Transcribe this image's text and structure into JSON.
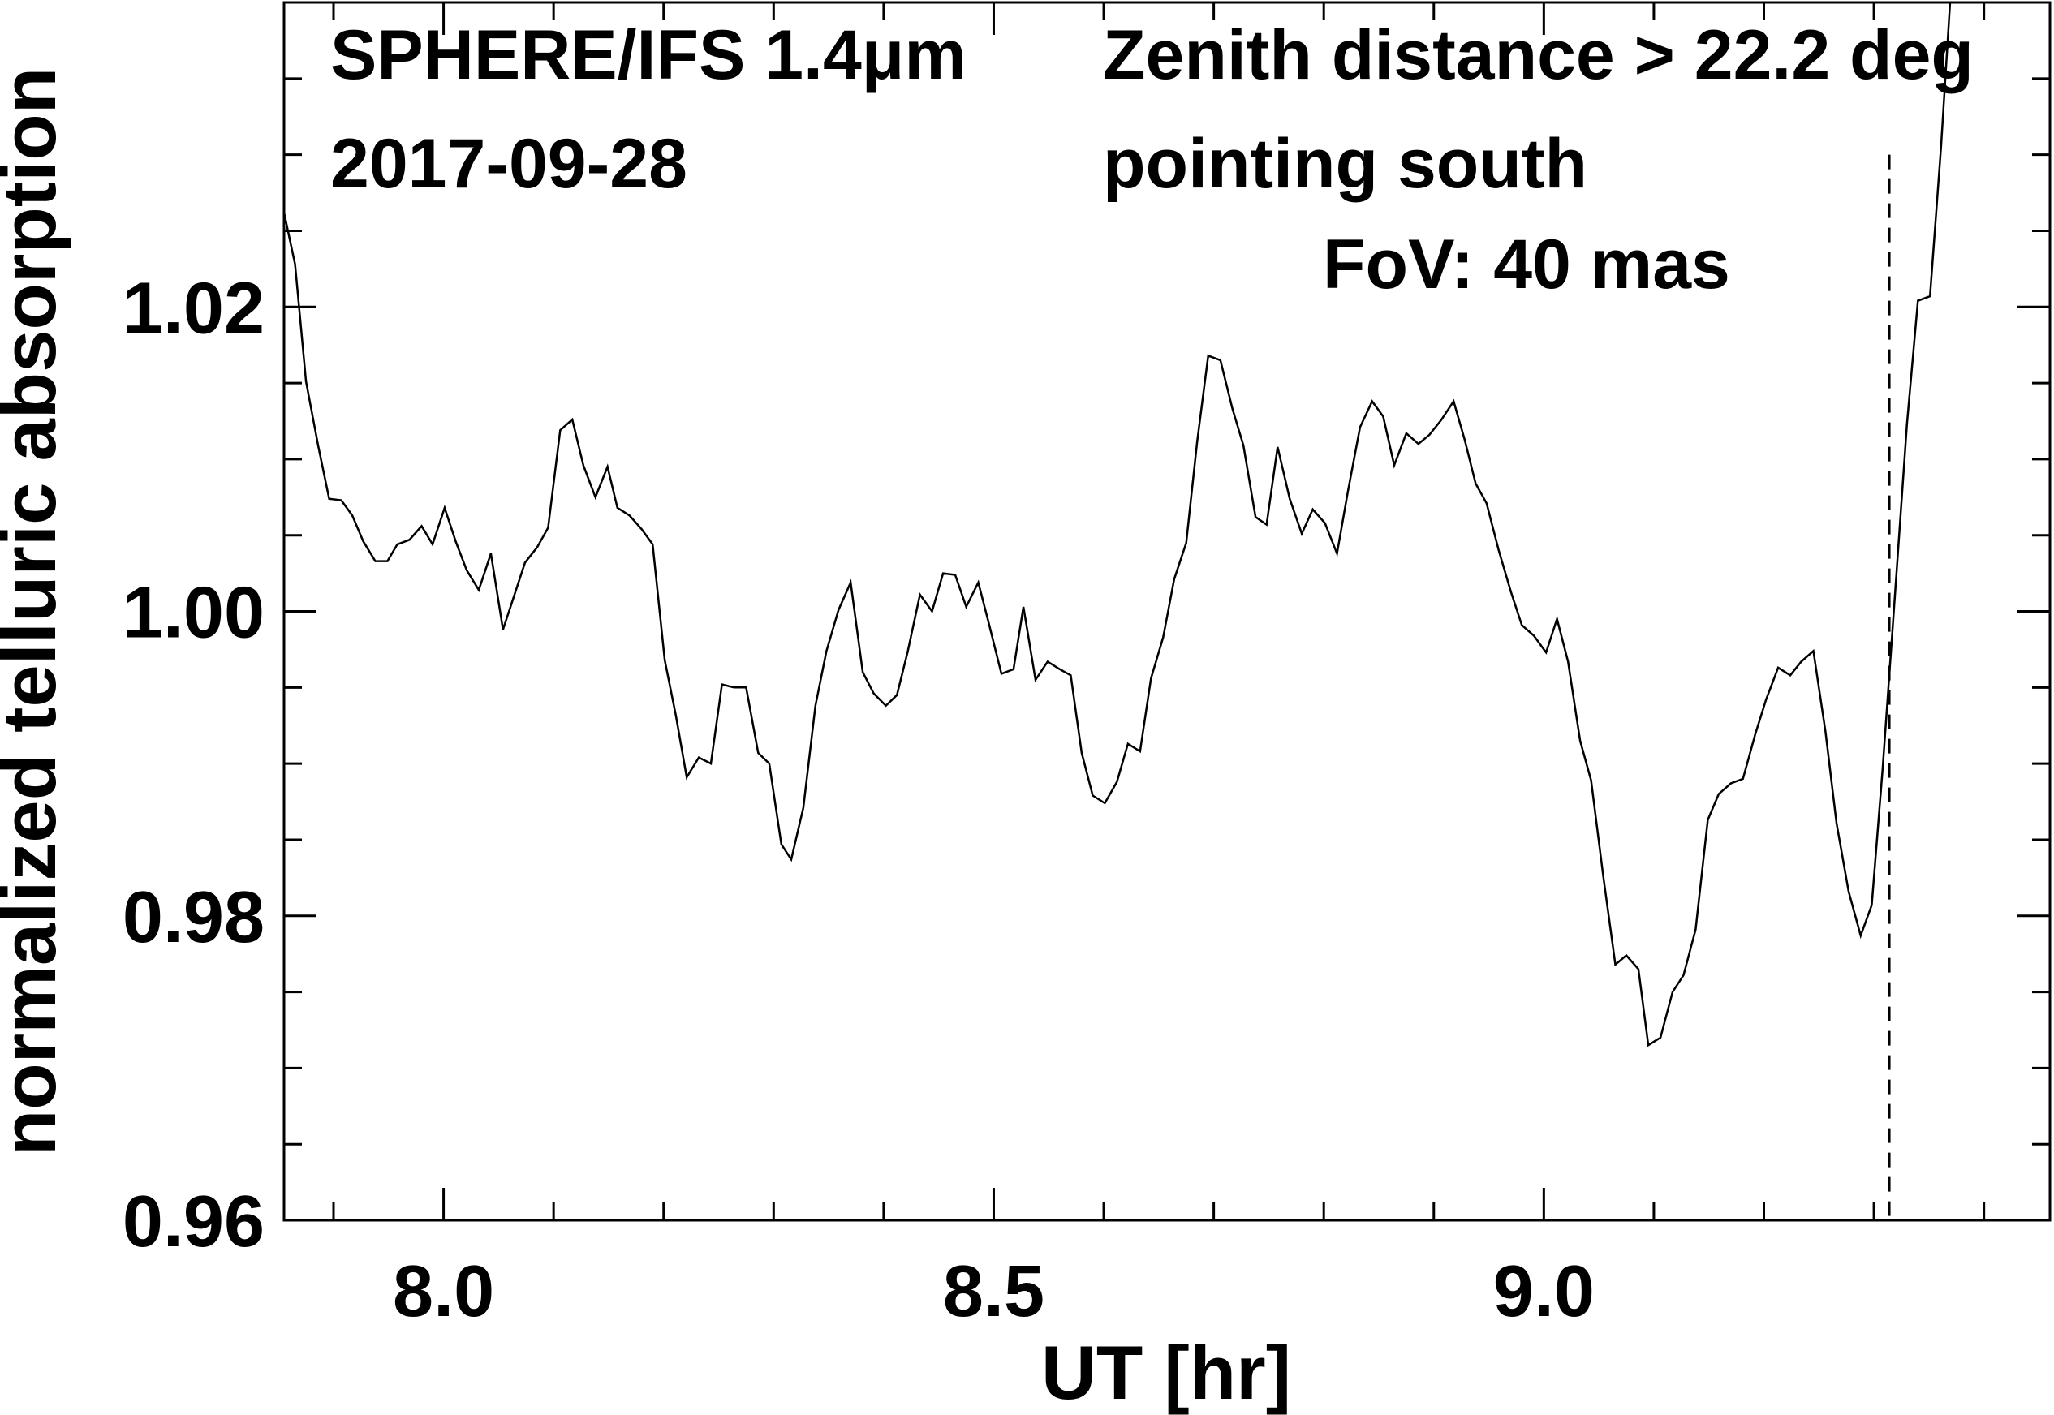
{
  "chart_data": {
    "type": "line",
    "xlabel": "UT [hr]",
    "ylabel": "normalized telluric absorption",
    "annotations": [
      "SPHERE/IFS 1.4μm",
      "2017-09-28",
      "Zenith distance > 22.2 deg",
      "pointing south",
      "FoV: 40 mas"
    ],
    "x": [
      7.855,
      7.865,
      7.875,
      7.886,
      7.896,
      7.907,
      7.917,
      7.927,
      7.938,
      7.949,
      7.958,
      7.969,
      7.98,
      7.99,
      8.001,
      8.011,
      8.021,
      8.032,
      8.043,
      8.054,
      8.064,
      8.074,
      8.085,
      8.095,
      8.106,
      8.117,
      8.127,
      8.138,
      8.149,
      8.158,
      8.169,
      8.18,
      8.19,
      8.201,
      8.211,
      8.221,
      8.232,
      8.243,
      8.253,
      8.264,
      8.275,
      8.286,
      8.296,
      8.307,
      8.316,
      8.327,
      8.338,
      8.348,
      8.359,
      8.37,
      8.381,
      8.391,
      8.402,
      8.412,
      8.422,
      8.433,
      8.444,
      8.454,
      8.465,
      8.475,
      8.486,
      8.496,
      8.507,
      8.518,
      8.527,
      8.538,
      8.549,
      8.56,
      8.57,
      8.58,
      8.59,
      8.601,
      8.612,
      8.622,
      8.633,
      8.643,
      8.654,
      8.664,
      8.675,
      8.685,
      8.695,
      8.706,
      8.717,
      8.727,
      8.738,
      8.748,
      8.758,
      8.769,
      8.78,
      8.79,
      8.801,
      8.812,
      8.822,
      8.833,
      8.844,
      8.854,
      8.864,
      8.875,
      8.886,
      8.896,
      8.907,
      8.918,
      8.928,
      8.938,
      8.948,
      8.959,
      8.97,
      8.98,
      8.991,
      9.002,
      9.012,
      9.022,
      9.033,
      9.043,
      9.054,
      9.065,
      9.075,
      9.086,
      9.095,
      9.106,
      9.117,
      9.127,
      9.138,
      9.149,
      9.159,
      9.17,
      9.181,
      9.192,
      9.202,
      9.213,
      9.224,
      9.234,
      9.245,
      9.256,
      9.266,
      9.277,
      9.288,
      9.298,
      9.308,
      9.319,
      9.33,
      9.34,
      9.351,
      9.361,
      9.371
    ],
    "series": [
      {
        "color": "#000000",
        "values": [
          1.0262,
          1.0228,
          1.0151,
          1.0109,
          1.0074,
          1.0073,
          1.0063,
          1.0046,
          1.0033,
          1.0033,
          1.0044,
          1.0047,
          1.0056,
          1.0044,
          1.0068,
          1.0046,
          1.0027,
          1.0014,
          1.0038,
          0.9988,
          1.001,
          1.0032,
          1.0042,
          1.0055,
          1.0119,
          1.0126,
          1.0096,
          1.0075,
          1.0095,
          1.0068,
          1.0063,
          1.0054,
          1.0044,
          0.9968,
          0.9932,
          0.9891,
          0.9904,
          0.99,
          0.9952,
          0.995,
          0.995,
          0.9907,
          0.99,
          0.9847,
          0.9837,
          0.9871,
          0.9938,
          0.9974,
          1.0001,
          1.0019,
          0.996,
          0.9946,
          0.9938,
          0.9945,
          0.9974,
          1.0011,
          1.0,
          1.0025,
          1.0024,
          1.0003,
          1.0019,
          0.9991,
          0.9959,
          0.9962,
          1.0003,
          0.9955,
          0.9967,
          0.9962,
          0.9958,
          0.9907,
          0.9879,
          0.9874,
          0.9888,
          0.9913,
          0.9908,
          0.9956,
          0.9983,
          1.0021,
          1.0045,
          1.0112,
          1.0168,
          1.0165,
          1.0133,
          1.0109,
          1.0062,
          1.0057,
          1.0108,
          1.0074,
          1.0051,
          1.0067,
          1.0058,
          1.0038,
          1.0079,
          1.0121,
          1.0138,
          1.0128,
          1.0096,
          1.0117,
          1.011,
          1.0116,
          1.0126,
          1.0138,
          1.0113,
          1.0084,
          1.0071,
          1.004,
          1.0013,
          0.9991,
          0.9984,
          0.9973,
          0.9995,
          0.9967,
          0.9915,
          0.9889,
          0.9826,
          0.9768,
          0.9774,
          0.9765,
          0.9715,
          0.972,
          0.975,
          0.9761,
          0.9791,
          0.9863,
          0.988,
          0.9887,
          0.989,
          0.9919,
          0.9942,
          0.9963,
          0.9958,
          0.9967,
          0.9974,
          0.9921,
          0.9861,
          0.9816,
          0.9787,
          0.9807,
          0.9897,
          1.0009,
          1.0123,
          1.0204,
          1.0207,
          1.0305,
          1.042
        ]
      }
    ],
    "xlim": [
      7.855,
      9.46
    ],
    "ylim": [
      0.96,
      1.04
    ],
    "xticks": [
      {
        "value": 8,
        "label": "8.0"
      },
      {
        "value": 8.5,
        "label": "8.5"
      },
      {
        "value": 9,
        "label": "9.0"
      }
    ],
    "yticks": [
      {
        "value": 0.96,
        "label": "0.96"
      },
      {
        "value": 0.98,
        "label": "0.98"
      },
      {
        "value": 1,
        "label": "1.00"
      },
      {
        "value": 1.02,
        "label": "1.02"
      }
    ],
    "xminor_ticks": [
      7.9,
      8.1,
      8.2,
      8.3,
      8.4,
      8.6,
      8.7,
      8.8,
      8.9,
      9.1,
      9.2,
      9.3,
      9.4
    ],
    "yminor_ticks": [
      0.965,
      0.97,
      0.975,
      0.985,
      0.99,
      0.995,
      1.005,
      1.01,
      1.015,
      1.025,
      1.03,
      1.035
    ],
    "vline_x": 9.314,
    "vline_top": 1.03
  }
}
